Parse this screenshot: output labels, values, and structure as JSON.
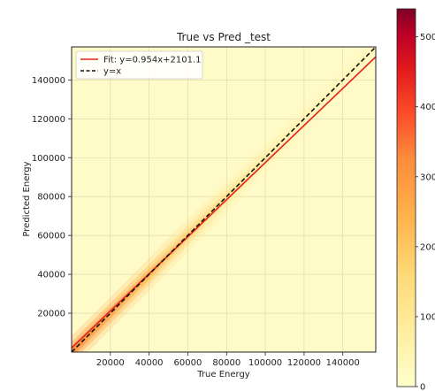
{
  "chart_data": {
    "type": "heatmap",
    "title": "True vs Pred _test",
    "xlabel": "True Energy",
    "ylabel": "Predicted Energy",
    "xlim": [
      0,
      157000
    ],
    "ylim": [
      0,
      157000
    ],
    "x_ticks": [
      20000,
      40000,
      60000,
      80000,
      100000,
      120000,
      140000
    ],
    "y_ticks": [
      20000,
      40000,
      60000,
      80000,
      100000,
      120000,
      140000
    ],
    "x_tick_labels": [
      "20000",
      "40000",
      "60000",
      "80000",
      "100000",
      "120000",
      "140000"
    ],
    "y_tick_labels": [
      "20000",
      "40000",
      "60000",
      "80000",
      "100000",
      "120000",
      "140000"
    ],
    "grid": true,
    "legend_position": "top-left",
    "series": [
      {
        "name": "Fit: y=0.954x+2101.1",
        "kind": "line",
        "slope": 0.954,
        "intercept": 2101.1,
        "style": "solid",
        "color": "#e3231c",
        "x": [
          0,
          157000
        ],
        "y": [
          2101.1,
          151879.1
        ]
      },
      {
        "name": "y=x",
        "kind": "line",
        "slope": 1,
        "intercept": 0,
        "style": "dashed",
        "color": "#111111",
        "x": [
          0,
          157000
        ],
        "y": [
          0,
          157000
        ]
      }
    ],
    "density": {
      "description_units": "point density concentrated along diagonal, strongest near the low-energy end",
      "peak_along_diagonal_x": [
        0,
        20000,
        40000,
        60000,
        80000,
        100000,
        120000,
        140000,
        157000
      ],
      "relative_intensity": [
        0.55,
        0.5,
        0.4,
        0.28,
        0.14,
        0.08,
        0.05,
        0.03,
        0.02
      ]
    },
    "colorbar": {
      "colormap": "YlOrRd",
      "min": 0,
      "tick_labels": [
        "0",
        "100",
        "200",
        "300",
        "400",
        "500"
      ],
      "tick_values": [
        0,
        100,
        200,
        300,
        400,
        500
      ],
      "max": 540
    }
  },
  "colors": {
    "background": "#fffbc8",
    "grid": "#d9d6a8",
    "fit_line": "#e3231c",
    "identity_line": "#111111"
  }
}
